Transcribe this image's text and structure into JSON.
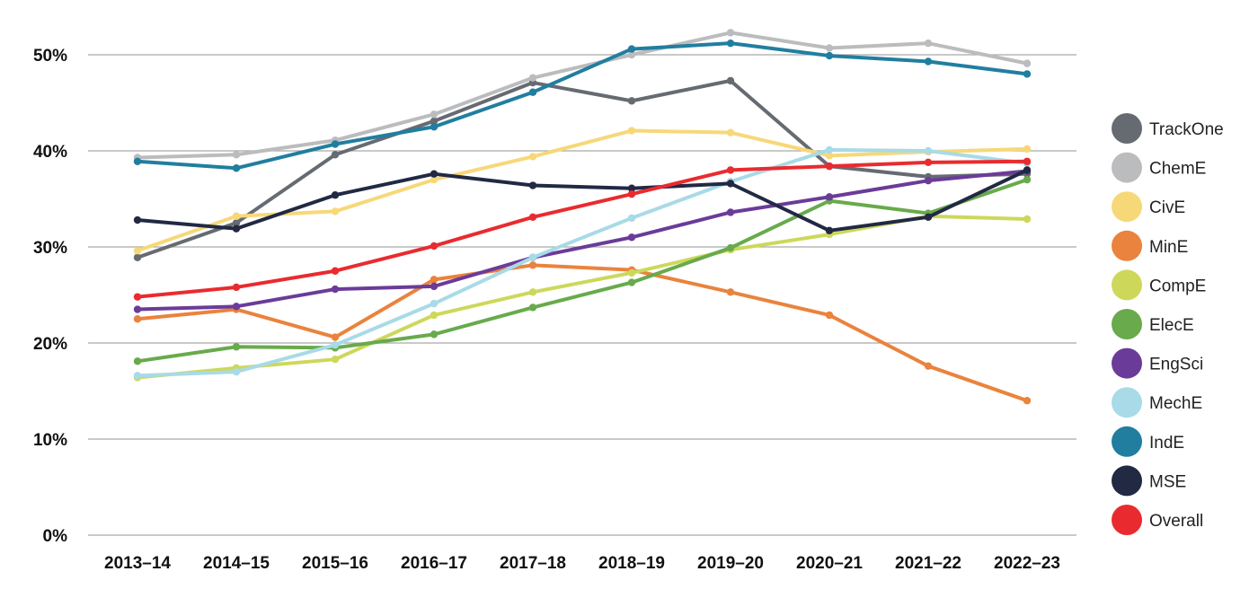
{
  "chart_data": {
    "type": "line",
    "title": "",
    "xlabel": "",
    "ylabel": "",
    "categories": [
      "2013–14",
      "2014–15",
      "2015–16",
      "2016–17",
      "2017–18",
      "2018–19",
      "2019–20",
      "2020–21",
      "2021–22",
      "2022–23"
    ],
    "ylim": [
      0,
      50
    ],
    "yticks": [
      0,
      10,
      20,
      30,
      40,
      50
    ],
    "ytick_labels": [
      "0%",
      "10%",
      "20%",
      "30%",
      "40%",
      "50%"
    ],
    "grid": "horizontal",
    "legend_position": "right",
    "series": [
      {
        "name": "TrackOne",
        "color": "#666b72",
        "values": [
          28.9,
          32.5,
          39.6,
          43.1,
          47.1,
          45.2,
          47.3,
          38.4,
          37.3,
          37.6
        ]
      },
      {
        "name": "ChemE",
        "color": "#bbbcbe",
        "values": [
          39.3,
          39.6,
          41.1,
          43.8,
          47.6,
          50.0,
          52.3,
          50.7,
          51.2,
          49.1
        ]
      },
      {
        "name": "CivE",
        "color": "#f7d878",
        "values": [
          29.6,
          33.2,
          33.7,
          37.0,
          39.4,
          42.1,
          41.9,
          39.5,
          39.9,
          40.2
        ]
      },
      {
        "name": "MinE",
        "color": "#ea833d",
        "values": [
          22.5,
          23.5,
          20.6,
          26.6,
          28.1,
          27.6,
          25.3,
          22.9,
          17.6,
          14.0
        ]
      },
      {
        "name": "CompE",
        "color": "#cdd85a",
        "values": [
          16.4,
          17.4,
          18.3,
          22.9,
          25.3,
          27.3,
          29.7,
          31.3,
          33.2,
          32.9
        ]
      },
      {
        "name": "ElecE",
        "color": "#68aa4c",
        "values": [
          18.1,
          19.6,
          19.5,
          20.9,
          23.7,
          26.3,
          29.9,
          34.8,
          33.5,
          37.0
        ]
      },
      {
        "name": "EngSci",
        "color": "#6b3b99",
        "values": [
          23.5,
          23.8,
          25.6,
          25.9,
          28.9,
          31.0,
          33.6,
          35.2,
          36.9,
          37.9
        ]
      },
      {
        "name": "MechE",
        "color": "#a8dae7",
        "values": [
          16.6,
          17.0,
          19.8,
          24.1,
          28.9,
          33.0,
          36.8,
          40.1,
          40.0,
          38.7
        ]
      },
      {
        "name": "IndE",
        "color": "#217e9f",
        "values": [
          38.9,
          38.2,
          40.7,
          42.5,
          46.1,
          50.6,
          51.2,
          49.9,
          49.3,
          48.0
        ]
      },
      {
        "name": "MSE",
        "color": "#212943",
        "values": [
          32.8,
          31.9,
          35.4,
          37.6,
          36.4,
          36.1,
          36.6,
          31.7,
          33.1,
          38.0
        ]
      },
      {
        "name": "Overall",
        "color": "#e92b2f",
        "values": [
          24.8,
          25.8,
          27.5,
          30.1,
          33.1,
          35.5,
          38.0,
          38.4,
          38.8,
          38.9
        ]
      }
    ]
  }
}
